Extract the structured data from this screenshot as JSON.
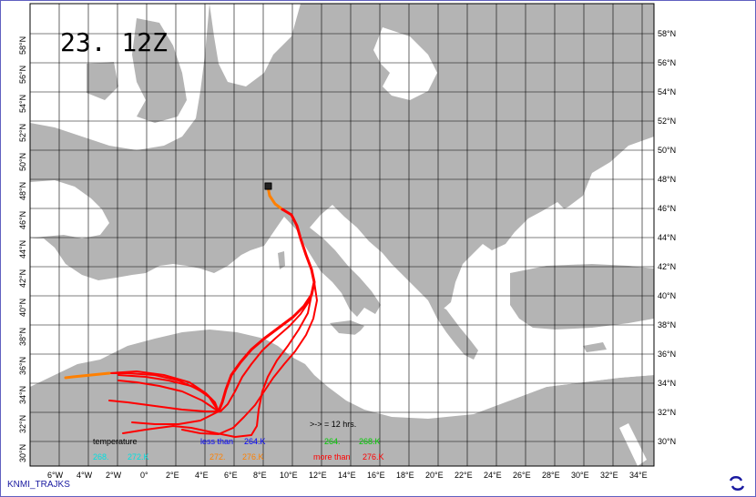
{
  "map": {
    "stamp": "23. 12Z",
    "lon_ticks": [
      "6°W",
      "4°W",
      "2°W",
      "0°",
      "2°E",
      "4°E",
      "6°E",
      "8°E",
      "10°E",
      "12°E",
      "14°E",
      "16°E",
      "18°E",
      "20°E",
      "22°E",
      "24°E",
      "26°E",
      "28°E",
      "30°E",
      "32°E",
      "34°E"
    ],
    "lat_ticks_left": [
      "30°N",
      "32°N",
      "34°N",
      "36°N",
      "38°N",
      "40°N",
      "42°N",
      "44°N",
      "46°N",
      "48°N",
      "50°N",
      "52°N",
      "54°N",
      "56°N",
      "58°N"
    ],
    "lat_ticks_right": [
      "30°N",
      "32°N",
      "34°N",
      "36°N",
      "38°N",
      "40°N",
      "42°N",
      "44°N",
      "46°N",
      "48°N",
      "50°N",
      "52°N",
      "54°N",
      "56°N",
      "58°N"
    ],
    "arrow_note": ">-> = 12 hrs.",
    "colors": {
      "land": "#b4b4b4",
      "sea": "#ffffff",
      "grid": "#000000",
      "red": "#ff0000",
      "orange": "#ff8000",
      "blue": "#0000ff",
      "green": "#00cc00",
      "cyan": "#00e0e0"
    }
  },
  "legend": {
    "title": "temperature",
    "less_than": "less than",
    "less_val": "264.K",
    "green_a": "264.",
    "green_b": "268.K",
    "cyan_a": "268.",
    "cyan_b": "272.K",
    "orange_a": "272.",
    "orange_b": "276.K",
    "more_than": "more than",
    "more_val": "276.K"
  },
  "footer": {
    "label": "KNMI_TRAJKS",
    "logo_icon": "knmi-logo-icon"
  }
}
